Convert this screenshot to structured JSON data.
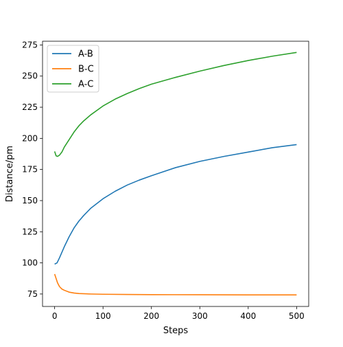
{
  "chart_data": {
    "type": "line",
    "title": "",
    "xlabel": "Steps",
    "ylabel": "Distance/pm",
    "xlim": [
      -25,
      525
    ],
    "ylim": [
      65,
      278
    ],
    "xticks": [
      0,
      100,
      200,
      300,
      400,
      500
    ],
    "yticks": [
      75,
      100,
      125,
      150,
      175,
      200,
      225,
      250,
      275
    ],
    "grid": false,
    "legend": "top-left",
    "series": [
      {
        "name": "A-B",
        "color": "#1f77b4",
        "x": [
          0,
          5,
          10,
          20,
          30,
          40,
          50,
          60,
          75,
          100,
          125,
          150,
          175,
          200,
          250,
          300,
          350,
          400,
          450,
          500
        ],
        "y": [
          99,
          100,
          104,
          113,
          121,
          128,
          133.5,
          138,
          144,
          151.5,
          157.5,
          162.5,
          166.5,
          170,
          176.5,
          181.5,
          185.5,
          189,
          192.5,
          195
        ]
      },
      {
        "name": "B-C",
        "color": "#ff7f0e",
        "x": [
          0,
          3,
          6,
          10,
          15,
          20,
          30,
          40,
          50,
          75,
          100,
          150,
          200,
          300,
          400,
          500
        ],
        "y": [
          91,
          87.5,
          84,
          81,
          79,
          78,
          76.5,
          75.8,
          75.4,
          75,
          74.8,
          74.6,
          74.5,
          74.4,
          74.3,
          74.3
        ]
      },
      {
        "name": "A-C",
        "color": "#2ca02c",
        "x": [
          0,
          3,
          6,
          10,
          15,
          20,
          30,
          40,
          50,
          60,
          75,
          100,
          125,
          150,
          175,
          200,
          250,
          300,
          350,
          400,
          450,
          500
        ],
        "y": [
          189.5,
          186,
          185.5,
          186.5,
          189,
          193,
          199,
          205,
          210,
          214,
          219,
          226,
          231.5,
          236,
          240,
          243.5,
          249,
          254,
          258.5,
          262.5,
          266,
          269
        ]
      }
    ]
  }
}
